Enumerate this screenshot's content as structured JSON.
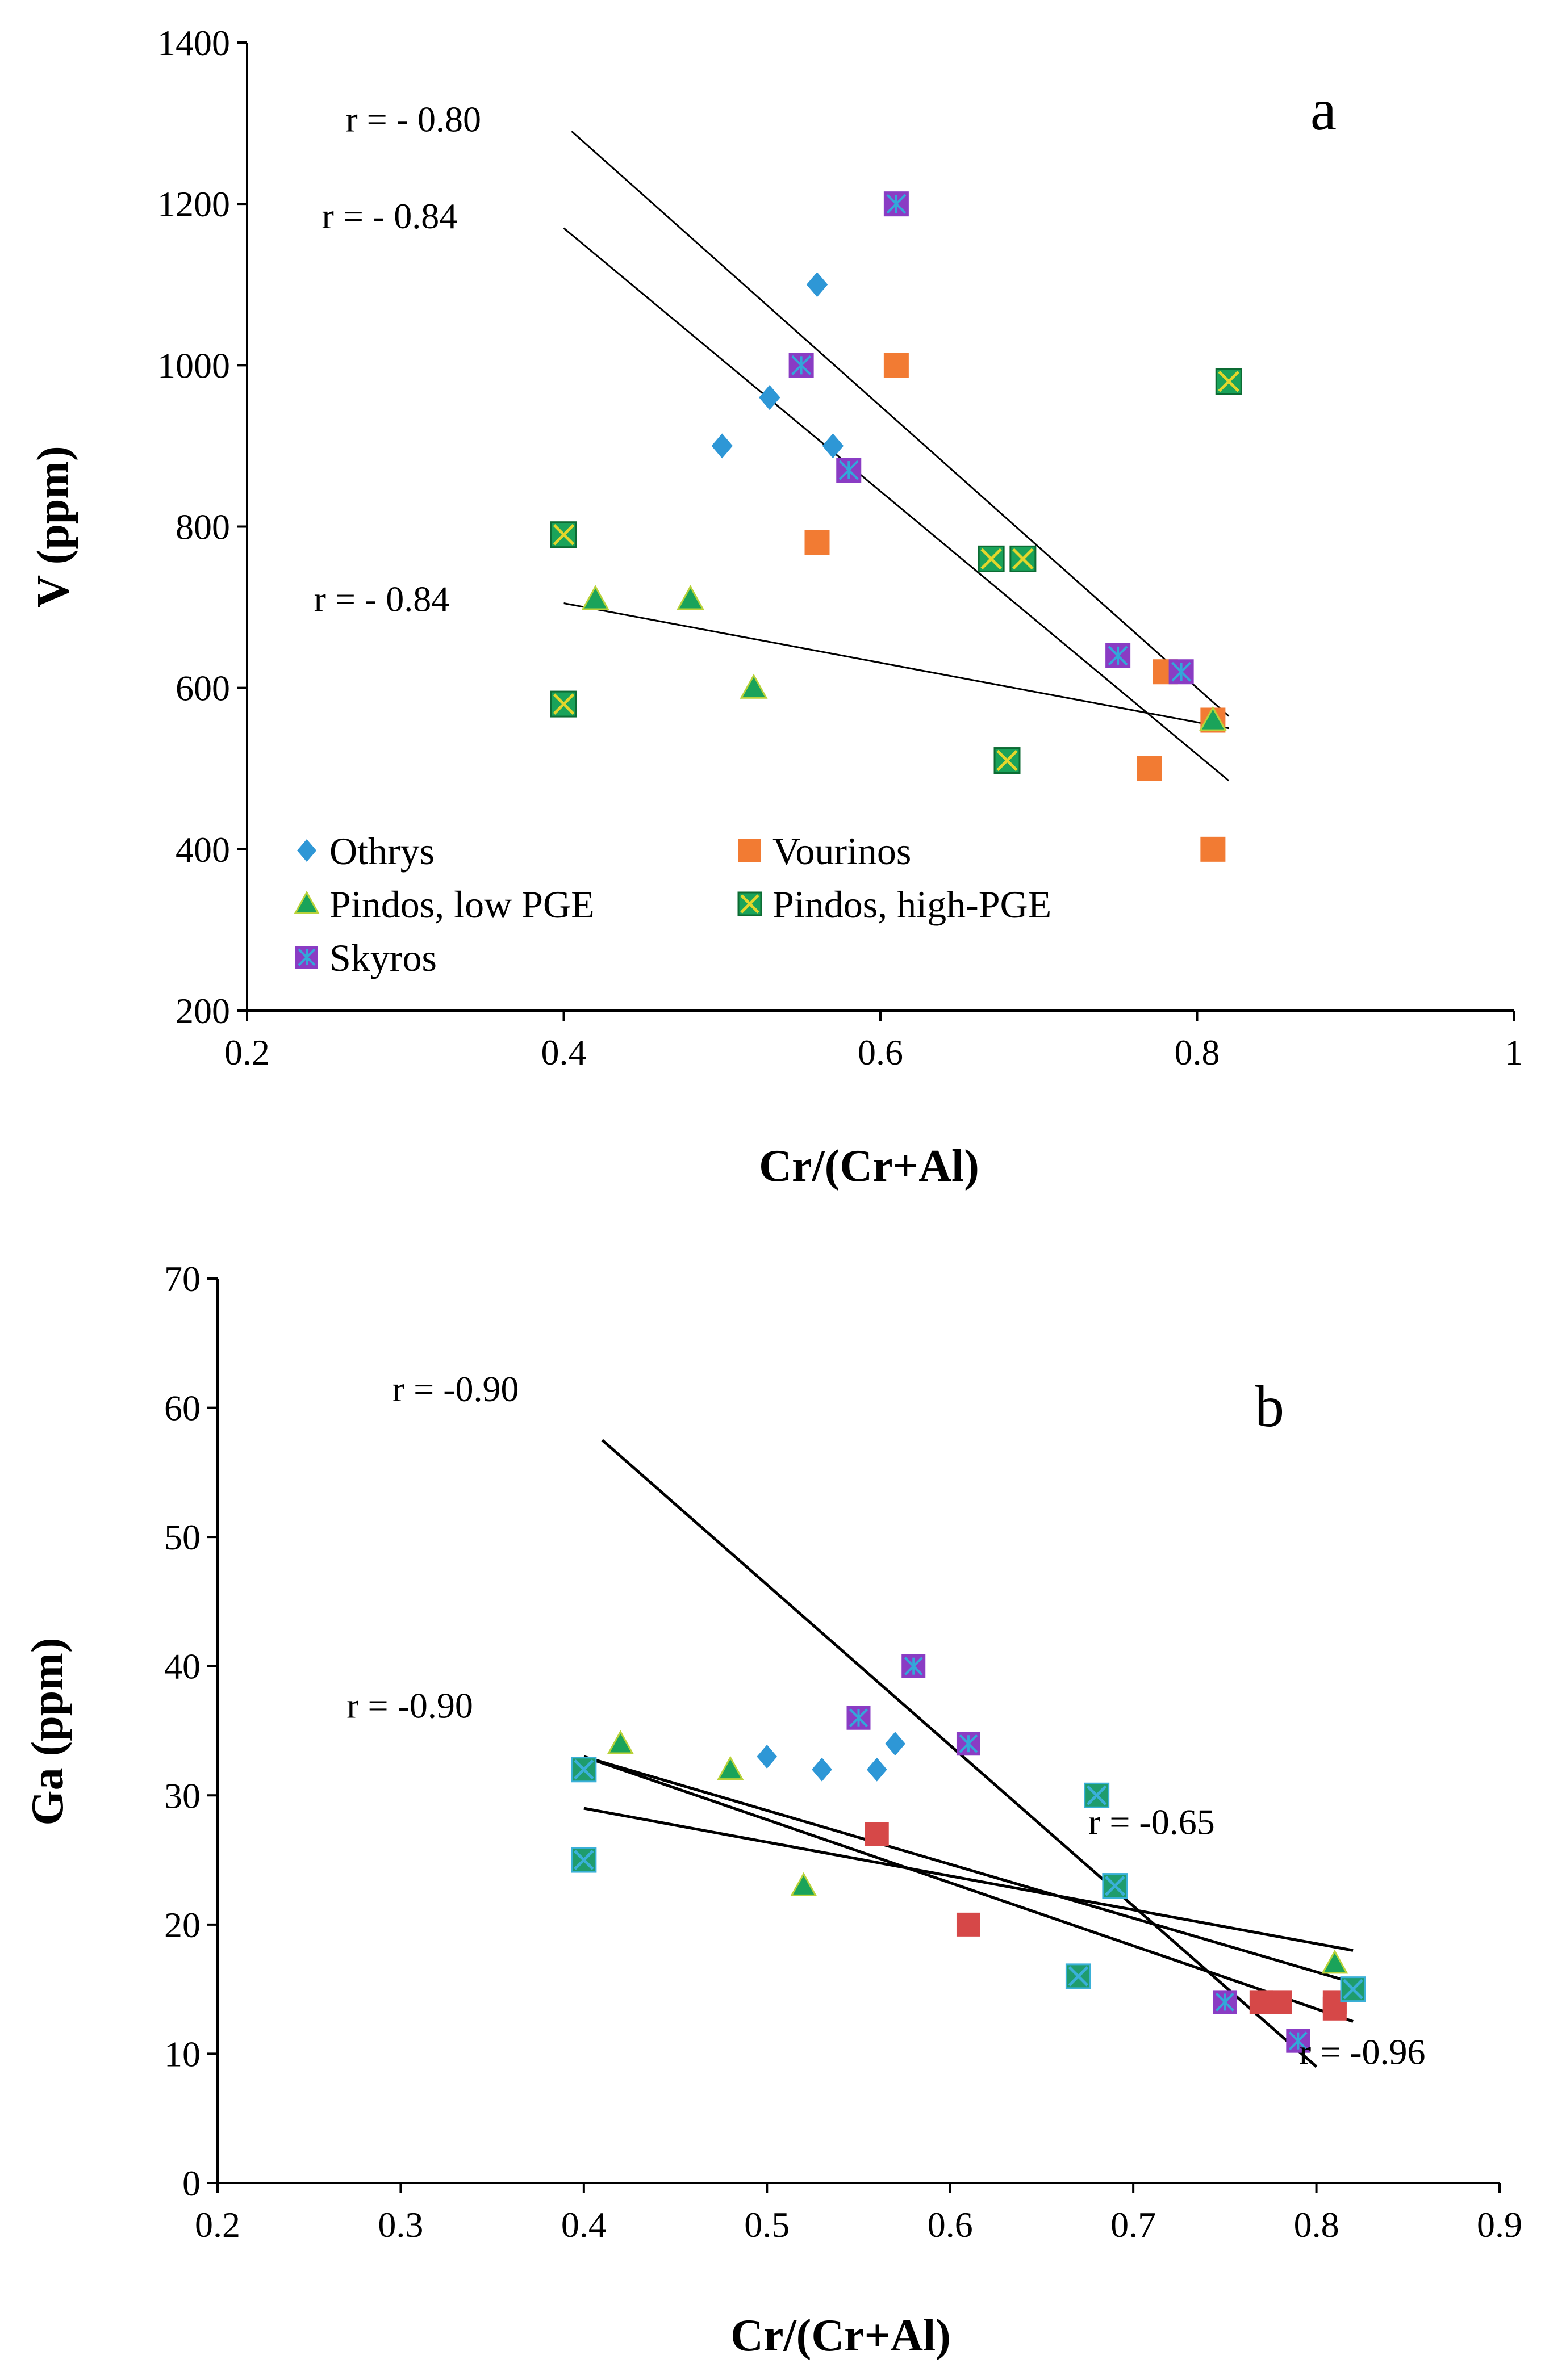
{
  "colors": {
    "othrys": "#2e97d6",
    "vourinos": "#f27b33",
    "pindos_low": "#1aa35a",
    "pindos_high_fill": "#1aa35a",
    "pindos_high_cross": "#e3d62b",
    "skyros_fill": "#8a3cc4",
    "skyros_cross": "#33a7d9",
    "vourinos_b": "#d64848",
    "pindos_high_b": "#1f9c6d",
    "axis": "#000000"
  },
  "chart_data": [
    {
      "type": "scatter",
      "panel_label": "a",
      "xlabel": "Cr/(Cr+Al)",
      "ylabel": "V (ppm)",
      "xlim": [
        0.2,
        1.0
      ],
      "ylim": [
        200,
        1400
      ],
      "xticks": [
        0.2,
        0.4,
        0.6,
        0.8,
        1.0
      ],
      "xtick_labels": [
        "0.2",
        "0.4",
        "0.6",
        "0.8",
        "1"
      ],
      "yticks": [
        200,
        400,
        600,
        800,
        1000,
        1200,
        1400
      ],
      "ytick_labels": [
        "200",
        "400",
        "600",
        "800",
        "1000",
        "1200",
        "1400"
      ],
      "legend": [
        {
          "label": "Othrys",
          "marker": "diamond",
          "series": "othrys"
        },
        {
          "label": "Vourinos",
          "marker": "square",
          "series": "vourinos"
        },
        {
          "label": "Pindos, low PGE",
          "marker": "triangle",
          "series": "pindos_low"
        },
        {
          "label": "Pindos, high-PGE",
          "marker": "square-x",
          "series": "pindos_high"
        },
        {
          "label": "Skyros",
          "marker": "square-star",
          "series": "skyros"
        }
      ],
      "series": [
        {
          "name": "Othrys",
          "key": "othrys",
          "marker": "diamond",
          "color": "#2e97d6",
          "x": [
            0.56,
            0.53,
            0.5,
            0.57
          ],
          "y": [
            1100,
            960,
            900,
            900
          ]
        },
        {
          "name": "Vourinos",
          "key": "vourinos",
          "marker": "square",
          "color": "#f27b33",
          "x": [
            0.61,
            0.56,
            0.78,
            0.81,
            0.77,
            0.81
          ],
          "y": [
            1000,
            780,
            620,
            560,
            500,
            400
          ]
        },
        {
          "name": "Pindos, low PGE",
          "key": "pindos_low",
          "marker": "triangle",
          "color": "#1aa35a",
          "x": [
            0.42,
            0.48,
            0.52,
            0.81
          ],
          "y": [
            710,
            710,
            600,
            560
          ]
        },
        {
          "name": "Pindos, high-PGE",
          "key": "pindos_high",
          "marker": "square-x",
          "color": "#1aa35a",
          "x": [
            0.4,
            0.4,
            0.67,
            0.69,
            0.68,
            0.82
          ],
          "y": [
            790,
            580,
            760,
            760,
            510,
            980
          ]
        },
        {
          "name": "Skyros",
          "key": "skyros",
          "marker": "square-star",
          "color": "#8a3cc4",
          "x": [
            0.61,
            0.55,
            0.58,
            0.75,
            0.79
          ],
          "y": [
            1200,
            1000,
            870,
            640,
            620
          ]
        }
      ],
      "trendlines": [
        {
          "x": [
            0.405,
            0.82
          ],
          "y": [
            1290,
            565
          ]
        },
        {
          "x": [
            0.4,
            0.82
          ],
          "y": [
            1170,
            485
          ]
        },
        {
          "x": [
            0.4,
            0.82
          ],
          "y": [
            705,
            550
          ]
        }
      ],
      "annotations": [
        {
          "text": "r = - 0.80",
          "x": 0.305,
          "y": 1290
        },
        {
          "text": "r = - 0.84",
          "x": 0.29,
          "y": 1170
        },
        {
          "text": "r = - 0.84",
          "x": 0.285,
          "y": 695
        }
      ]
    },
    {
      "type": "scatter",
      "panel_label": "b",
      "xlabel": "Cr/(Cr+Al)",
      "ylabel": "Ga (ppm)",
      "xlim": [
        0.2,
        0.9
      ],
      "ylim": [
        0,
        70
      ],
      "xticks": [
        0.2,
        0.3,
        0.4,
        0.5,
        0.6,
        0.7,
        0.8,
        0.9
      ],
      "xtick_labels": [
        "0.2",
        "0.3",
        "0.4",
        "0.5",
        "0.6",
        "0.7",
        "0.8",
        "0.9"
      ],
      "yticks": [
        0,
        10,
        20,
        30,
        40,
        50,
        60,
        70
      ],
      "ytick_labels": [
        "0",
        "10",
        "20",
        "30",
        "40",
        "50",
        "60",
        "70"
      ],
      "series": [
        {
          "name": "Othrys",
          "key": "othrys",
          "marker": "diamond",
          "color": "#2e97d6",
          "x": [
            0.5,
            0.53,
            0.56,
            0.57
          ],
          "y": [
            33,
            32,
            32,
            34
          ]
        },
        {
          "name": "Vourinos",
          "key": "vourinos_b",
          "marker": "square",
          "color": "#d64848",
          "x": [
            0.56,
            0.61,
            0.77,
            0.78,
            0.81,
            0.81
          ],
          "y": [
            27,
            20,
            14,
            14,
            13.5,
            14
          ]
        },
        {
          "name": "Pindos, low PGE",
          "key": "pindos_low",
          "marker": "triangle",
          "color": "#1aa35a",
          "x": [
            0.42,
            0.48,
            0.52,
            0.81
          ],
          "y": [
            34,
            32,
            23,
            17
          ]
        },
        {
          "name": "Pindos, high-PGE",
          "key": "pindos_high_b",
          "marker": "square-x",
          "color": "#1f9c6d",
          "x": [
            0.4,
            0.4,
            0.68,
            0.69,
            0.67,
            0.82
          ],
          "y": [
            32,
            25,
            30,
            23,
            16,
            15
          ]
        },
        {
          "name": "Skyros",
          "key": "skyros",
          "marker": "square-star",
          "color": "#8a3cc4",
          "x": [
            0.55,
            0.58,
            0.61,
            0.75,
            0.79
          ],
          "y": [
            36,
            40,
            34,
            14,
            11
          ]
        }
      ],
      "trendlines": [
        {
          "x": [
            0.41,
            0.8
          ],
          "y": [
            57.5,
            9
          ]
        },
        {
          "x": [
            0.4,
            0.82
          ],
          "y": [
            33,
            15.5
          ]
        },
        {
          "x": [
            0.4,
            0.82
          ],
          "y": [
            33,
            12.5
          ]
        },
        {
          "x": [
            0.4,
            0.82
          ],
          "y": [
            29,
            18
          ]
        }
      ],
      "annotations": [
        {
          "text": "r = -0.90",
          "x": 0.33,
          "y": 60.5
        },
        {
          "text": "r = -0.90",
          "x": 0.305,
          "y": 36
        },
        {
          "text": "r = -0.65",
          "x": 0.71,
          "y": 27
        },
        {
          "text": "r = -0.96",
          "x": 0.825,
          "y": 9.2
        }
      ]
    }
  ]
}
